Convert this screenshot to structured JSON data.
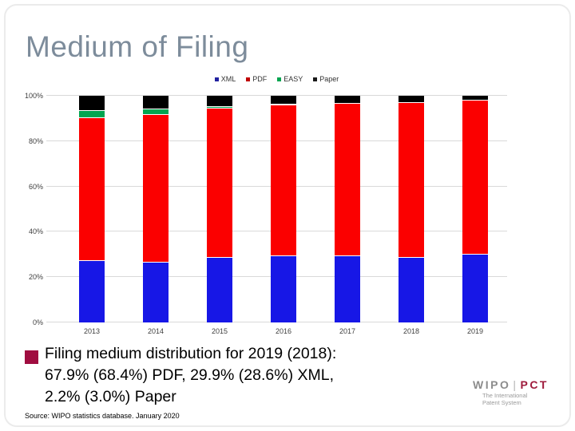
{
  "slide": {
    "title": "Medium of Filing",
    "bullet": {
      "marker_color": "#a00d40",
      "lines": [
        "Filing medium distribution for 2019 (2018):",
        "67.9% (68.4%) PDF, 29.9% (28.6%) XML,",
        "2.2% (3.0%) Paper"
      ]
    },
    "source": "Source: WIPO statistics database. January 2020",
    "logo": {
      "wipo": "WIPO",
      "separator": "|",
      "pct": "PCT",
      "tagline_line1": "The International",
      "tagline_line2": "Patent System",
      "wipo_color": "#8c8c8c",
      "pct_color": "#9e1b3c"
    }
  },
  "chart_data": {
    "type": "bar",
    "stacked": true,
    "title": "",
    "xlabel": "",
    "ylabel": "",
    "ylim": [
      0,
      100
    ],
    "grid": true,
    "legend_position": "top",
    "categories": [
      "2013",
      "2014",
      "2015",
      "2016",
      "2017",
      "2018",
      "2019"
    ],
    "series": [
      {
        "name": "XML",
        "color": "#1717e6",
        "legend_color": "#2222a0",
        "values": [
          27.0,
          26.3,
          28.5,
          29.3,
          29.2,
          28.6,
          29.9
        ]
      },
      {
        "name": "PDF",
        "color": "#fb0000",
        "legend_color": "#c00000",
        "values": [
          63.0,
          65.2,
          66.0,
          66.5,
          67.2,
          68.4,
          67.9
        ]
      },
      {
        "name": "EASY",
        "color": "#00a550",
        "legend_color": "#00a550",
        "values": [
          3.3,
          2.5,
          0.5,
          0.3,
          0.1,
          0.0,
          0.0
        ]
      },
      {
        "name": "Paper",
        "color": "#000000",
        "legend_color": "#1a1a1a",
        "values": [
          6.7,
          6.0,
          5.0,
          3.9,
          3.5,
          3.0,
          2.2
        ]
      }
    ],
    "yticks": [
      {
        "v": 0,
        "label": "0%"
      },
      {
        "v": 20,
        "label": "20%"
      },
      {
        "v": 40,
        "label": "40%"
      },
      {
        "v": 60,
        "label": "60%"
      },
      {
        "v": 80,
        "label": "80%"
      },
      {
        "v": 100,
        "label": "100%"
      }
    ]
  }
}
